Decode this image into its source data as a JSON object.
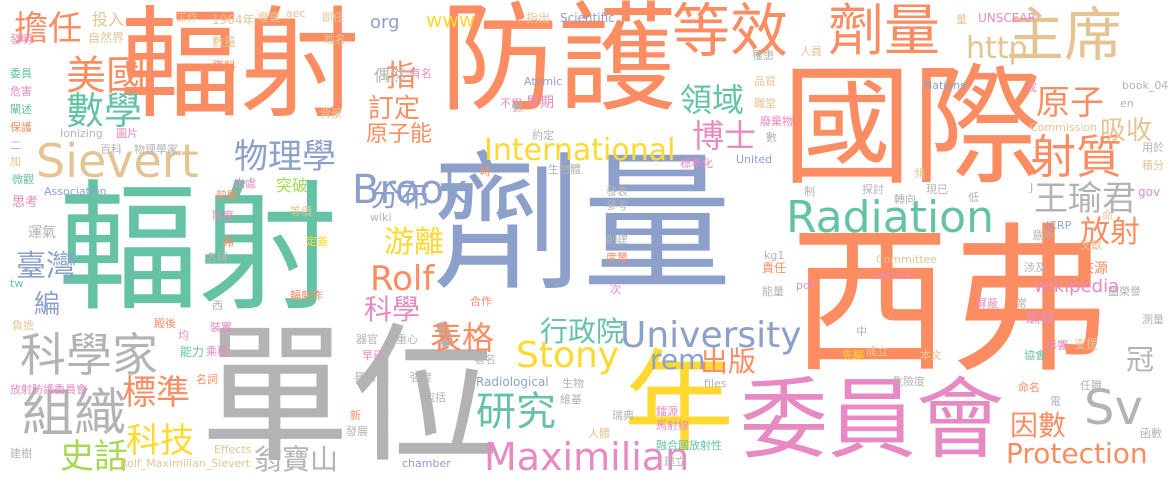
{
  "palette": {
    "orange": "#fc8d62",
    "blue": "#8da0cb",
    "green": "#66c2a5",
    "gray": "#b3b3b3",
    "yellow": "#ffd92f",
    "pink": "#e78ac3",
    "tan": "#e5c494",
    "lime": "#a6d854"
  },
  "words": [
    {
      "text": "劑量"
    },
    {
      "text": "西弗"
    },
    {
      "text": "輻射"
    },
    {
      "text": "單位"
    },
    {
      "text": "國際"
    },
    {
      "text": "輻射"
    },
    {
      "text": "防護"
    },
    {
      "text": "委員會"
    },
    {
      "text": "年"
    },
    {
      "text": "Radiation"
    },
    {
      "text": "Sievert"
    },
    {
      "text": "等效"
    },
    {
      "text": "劑量"
    },
    {
      "text": "主席"
    },
    {
      "text": "University"
    },
    {
      "text": "Maximilian"
    },
    {
      "text": "組織"
    },
    {
      "text": "科學家"
    },
    {
      "text": "Brook"
    },
    {
      "text": "Stony"
    },
    {
      "text": "Protection"
    },
    {
      "text": "International"
    },
    {
      "text": "研究"
    },
    {
      "text": "射質"
    },
    {
      "text": "王瑜君"
    },
    {
      "text": "美國"
    },
    {
      "text": "數學"
    },
    {
      "text": "http"
    },
    {
      "text": "Sv"
    },
    {
      "text": "Rolf"
    },
    {
      "text": "原子"
    },
    {
      "text": "吸收"
    },
    {
      "text": "物理學"
    },
    {
      "text": "博士"
    },
    {
      "text": "領域"
    },
    {
      "text": "分布"
    },
    {
      "text": "放射"
    },
    {
      "text": "擔任"
    },
    {
      "text": "翁寶山"
    },
    {
      "text": "標準"
    },
    {
      "text": "科技"
    },
    {
      "text": "史話"
    },
    {
      "text": "游離"
    },
    {
      "text": "表格"
    },
    {
      "text": "行政院"
    },
    {
      "text": "rem"
    },
    {
      "text": "出版"
    },
    {
      "text": "臺灣"
    },
    {
      "text": "因數"
    },
    {
      "text": "科學"
    },
    {
      "text": "訂定"
    },
    {
      "text": "原子能"
    },
    {
      "text": "指"
    },
    {
      "text": "冠"
    },
    {
      "text": "編"
    },
    {
      "text": "wikipedia"
    },
    {
      "text": "www"
    },
    {
      "text": "org"
    },
    {
      "text": "投入"
    },
    {
      "text": "自然界"
    },
    {
      "text": "數量"
    },
    {
      "text": "工作"
    },
    {
      "text": "1964年"
    },
    {
      "text": "廢棄"
    },
    {
      "text": "aec"
    },
    {
      "text": "即任"
    },
    {
      "text": "姓名"
    },
    {
      "text": "有名"
    },
    {
      "text": "偶然"
    },
    {
      "text": "Atomic"
    },
    {
      "text": "不用"
    },
    {
      "text": "早期"
    },
    {
      "text": "Scientific"
    },
    {
      "text": "指出"
    },
    {
      "text": "UNSCEAR"
    },
    {
      "text": "Nations"
    },
    {
      "text": "品質"
    },
    {
      "text": "罹患"
    },
    {
      "text": "人員"
    },
    {
      "text": "成"
    },
    {
      "text": "發明"
    },
    {
      "text": "委員"
    },
    {
      "text": "危害"
    },
    {
      "text": "闡述"
    },
    {
      "text": "保護"
    },
    {
      "text": "二"
    },
    {
      "text": "加"
    },
    {
      "text": "微觀"
    },
    {
      "text": "思考"
    },
    {
      "text": "運氣"
    },
    {
      "text": "tw"
    },
    {
      "text": "負擔"
    },
    {
      "text": "放射防護委員會"
    },
    {
      "text": "建樹"
    },
    {
      "text": "Ionizing"
    },
    {
      "text": "圖片"
    },
    {
      "text": "百科"
    },
    {
      "text": "物理學家"
    },
    {
      "text": "資料"
    },
    {
      "text": "背景"
    },
    {
      "text": "約定"
    },
    {
      "text": "數"
    },
    {
      "text": "時"
    },
    {
      "text": "生物體"
    },
    {
      "text": "Commission"
    },
    {
      "text": "標準化"
    },
    {
      "text": "United"
    },
    {
      "text": "廢棄物"
    },
    {
      "text": "Association"
    },
    {
      "text": "出處"
    },
    {
      "text": "前驅"
    },
    {
      "text": "突破"
    },
    {
      "text": "等價"
    },
    {
      "text": "限度"
    },
    {
      "text": "wiki"
    },
    {
      "text": "定義"
    },
    {
      "text": "名稱"
    },
    {
      "text": "弗"
    },
    {
      "text": "西"
    },
    {
      "text": "輻射作"
    },
    {
      "text": "合作"
    },
    {
      "text": "著名"
    },
    {
      "text": "殿後"
    },
    {
      "text": "均"
    },
    {
      "text": "器官"
    },
    {
      "text": "重心"
    },
    {
      "text": "裝置"
    },
    {
      "text": "能力"
    },
    {
      "text": "乘積"
    },
    {
      "text": "早已"
    },
    {
      "text": "名詞"
    },
    {
      "text": "暴露"
    },
    {
      "text": "強度"
    },
    {
      "text": "Radiological"
    },
    {
      "text": "生物"
    },
    {
      "text": "包括"
    },
    {
      "text": "新"
    },
    {
      "text": "發展"
    },
    {
      "text": "Effects"
    },
    {
      "text": "Rolf_Maximilian_Sievert"
    },
    {
      "text": "chamber"
    },
    {
      "text": "files"
    },
    {
      "text": "人體"
    },
    {
      "text": "瑞典"
    },
    {
      "text": "維基"
    },
    {
      "text": "鐳源"
    },
    {
      "text": "馬射線"
    },
    {
      "text": "融合國放射性"
    },
    {
      "text": "建立"
    },
    {
      "text": "先驅"
    },
    {
      "text": "成立"
    },
    {
      "text": "本文"
    },
    {
      "text": "危險度"
    },
    {
      "text": "命名"
    },
    {
      "text": "電"
    },
    {
      "text": "支援"
    },
    {
      "text": "任職"
    },
    {
      "text": "函數"
    },
    {
      "text": "測量"
    },
    {
      "text": "影響"
    },
    {
      "text": "協會"
    },
    {
      "text": "編輯"
    },
    {
      "text": "屏蔽"
    },
    {
      "text": "常"
    },
    {
      "text": "中"
    },
    {
      "text": "責任"
    },
    {
      "text": "pdf"
    },
    {
      "text": "kg1"
    },
    {
      "text": "Committee"
    },
    {
      "text": "service"
    },
    {
      "text": "涉及"
    },
    {
      "text": "來源"
    },
    {
      "text": "圖榮譽"
    },
    {
      "text": "文獻"
    },
    {
      "text": "ICRP"
    },
    {
      "text": "意外"
    },
    {
      "text": "命"
    },
    {
      "text": "gov"
    },
    {
      "text": "積分"
    },
    {
      "text": "用於"
    },
    {
      "text": "en"
    },
    {
      "text": "book_04"
    },
    {
      "text": "職堂"
    },
    {
      "text": "數"
    },
    {
      "text": "能量"
    },
    {
      "text": "次"
    },
    {
      "text": "度量"
    },
    {
      "text": "參考"
    },
    {
      "text": "發表"
    },
    {
      "text": "創建"
    },
    {
      "text": "制"
    },
    {
      "text": "探討"
    },
    {
      "text": "轉向"
    },
    {
      "text": "低"
    },
    {
      "text": "頻"
    },
    {
      "text": "現已"
    },
    {
      "text": "量"
    },
    {
      "text": "J"
    }
  ]
}
